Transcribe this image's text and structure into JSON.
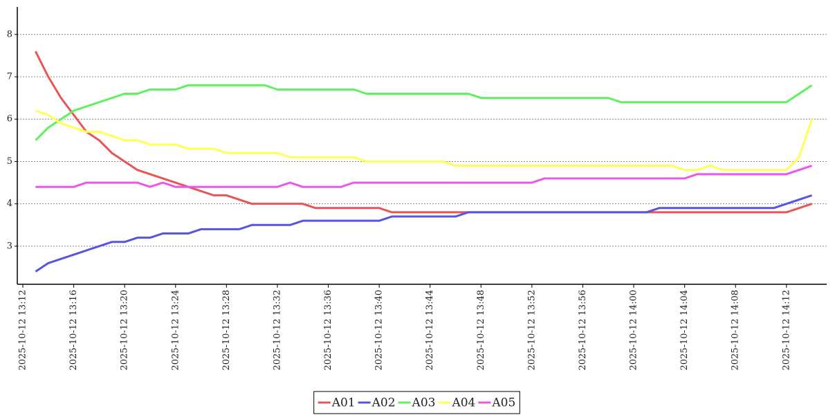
{
  "chart_data": {
    "type": "line",
    "x": [
      "2025-10-12 13:13",
      "2025-10-12 13:14",
      "2025-10-12 13:15",
      "2025-10-12 13:16",
      "2025-10-12 13:17",
      "2025-10-12 13:18",
      "2025-10-12 13:19",
      "2025-10-12 13:20",
      "2025-10-12 13:21",
      "2025-10-12 13:22",
      "2025-10-12 13:23",
      "2025-10-12 13:24",
      "2025-10-12 13:25",
      "2025-10-12 13:26",
      "2025-10-12 13:27",
      "2025-10-12 13:28",
      "2025-10-12 13:29",
      "2025-10-12 13:30",
      "2025-10-12 13:31",
      "2025-10-12 13:32",
      "2025-10-12 13:33",
      "2025-10-12 13:34",
      "2025-10-12 13:35",
      "2025-10-12 13:36",
      "2025-10-12 13:37",
      "2025-10-12 13:38",
      "2025-10-12 13:39",
      "2025-10-12 13:40",
      "2025-10-12 13:41",
      "2025-10-12 13:42",
      "2025-10-12 13:43",
      "2025-10-12 13:44",
      "2025-10-12 13:45",
      "2025-10-12 13:46",
      "2025-10-12 13:47",
      "2025-10-12 13:48",
      "2025-10-12 13:49",
      "2025-10-12 13:50",
      "2025-10-12 13:51",
      "2025-10-12 13:52",
      "2025-10-12 13:53",
      "2025-10-12 13:54",
      "2025-10-12 13:55",
      "2025-10-12 13:56",
      "2025-10-12 13:57",
      "2025-10-12 13:58",
      "2025-10-12 13:59",
      "2025-10-12 14:00",
      "2025-10-12 14:01",
      "2025-10-12 14:02",
      "2025-10-12 14:03",
      "2025-10-12 14:04",
      "2025-10-12 14:05",
      "2025-10-12 14:06",
      "2025-10-12 14:07",
      "2025-10-12 14:08",
      "2025-10-12 14:09",
      "2025-10-12 14:10",
      "2025-10-12 14:11",
      "2025-10-12 14:12",
      "2025-10-12 14:13",
      "2025-10-12 14:14"
    ],
    "series": [
      {
        "name": "A01",
        "color": "#e85555",
        "values": [
          7.6,
          7.0,
          6.5,
          6.1,
          5.7,
          5.5,
          5.2,
          5.0,
          4.8,
          4.7,
          4.6,
          4.5,
          4.4,
          4.3,
          4.2,
          4.2,
          4.1,
          4.0,
          4.0,
          4.0,
          4.0,
          4.0,
          3.9,
          3.9,
          3.9,
          3.9,
          3.9,
          3.9,
          3.8,
          3.8,
          3.8,
          3.8,
          3.8,
          3.8,
          3.8,
          3.8,
          3.8,
          3.8,
          3.8,
          3.8,
          3.8,
          3.8,
          3.8,
          3.8,
          3.8,
          3.8,
          3.8,
          3.8,
          3.8,
          3.8,
          3.8,
          3.8,
          3.8,
          3.8,
          3.8,
          3.8,
          3.8,
          3.8,
          3.8,
          3.8,
          3.9,
          4.0
        ]
      },
      {
        "name": "A02",
        "color": "#5555e0",
        "values": [
          2.4,
          2.6,
          2.7,
          2.8,
          2.9,
          3.0,
          3.1,
          3.1,
          3.2,
          3.2,
          3.3,
          3.3,
          3.3,
          3.4,
          3.4,
          3.4,
          3.4,
          3.5,
          3.5,
          3.5,
          3.5,
          3.6,
          3.6,
          3.6,
          3.6,
          3.6,
          3.6,
          3.6,
          3.7,
          3.7,
          3.7,
          3.7,
          3.7,
          3.7,
          3.8,
          3.8,
          3.8,
          3.8,
          3.8,
          3.8,
          3.8,
          3.8,
          3.8,
          3.8,
          3.8,
          3.8,
          3.8,
          3.8,
          3.8,
          3.9,
          3.9,
          3.9,
          3.9,
          3.9,
          3.9,
          3.9,
          3.9,
          3.9,
          3.9,
          4.0,
          4.1,
          4.2
        ]
      },
      {
        "name": "A03",
        "color": "#5ef05e",
        "values": [
          5.5,
          5.8,
          6.0,
          6.2,
          6.3,
          6.4,
          6.5,
          6.6,
          6.6,
          6.7,
          6.7,
          6.7,
          6.8,
          6.8,
          6.8,
          6.8,
          6.8,
          6.8,
          6.8,
          6.7,
          6.7,
          6.7,
          6.7,
          6.7,
          6.7,
          6.7,
          6.6,
          6.6,
          6.6,
          6.6,
          6.6,
          6.6,
          6.6,
          6.6,
          6.6,
          6.5,
          6.5,
          6.5,
          6.5,
          6.5,
          6.5,
          6.5,
          6.5,
          6.5,
          6.5,
          6.5,
          6.4,
          6.4,
          6.4,
          6.4,
          6.4,
          6.4,
          6.4,
          6.4,
          6.4,
          6.4,
          6.4,
          6.4,
          6.4,
          6.4,
          6.6,
          6.8
        ]
      },
      {
        "name": "A04",
        "color": "#ffff55",
        "values": [
          6.2,
          6.1,
          5.9,
          5.8,
          5.7,
          5.7,
          5.6,
          5.5,
          5.5,
          5.4,
          5.4,
          5.4,
          5.3,
          5.3,
          5.3,
          5.2,
          5.2,
          5.2,
          5.2,
          5.2,
          5.1,
          5.1,
          5.1,
          5.1,
          5.1,
          5.1,
          5.0,
          5.0,
          5.0,
          5.0,
          5.0,
          5.0,
          5.0,
          4.9,
          4.9,
          4.9,
          4.9,
          4.9,
          4.9,
          4.9,
          4.9,
          4.9,
          4.9,
          4.9,
          4.9,
          4.9,
          4.9,
          4.9,
          4.9,
          4.9,
          4.9,
          4.8,
          4.8,
          4.9,
          4.8,
          4.8,
          4.8,
          4.8,
          4.8,
          4.8,
          5.1,
          6.0
        ]
      },
      {
        "name": "A05",
        "color": "#ee55ee",
        "values": [
          4.4,
          4.4,
          4.4,
          4.4,
          4.5,
          4.5,
          4.5,
          4.5,
          4.5,
          4.4,
          4.5,
          4.4,
          4.4,
          4.4,
          4.4,
          4.4,
          4.4,
          4.4,
          4.4,
          4.4,
          4.5,
          4.4,
          4.4,
          4.4,
          4.4,
          4.5,
          4.5,
          4.5,
          4.5,
          4.5,
          4.5,
          4.5,
          4.5,
          4.5,
          4.5,
          4.5,
          4.5,
          4.5,
          4.5,
          4.5,
          4.6,
          4.6,
          4.6,
          4.6,
          4.6,
          4.6,
          4.6,
          4.6,
          4.6,
          4.6,
          4.6,
          4.6,
          4.7,
          4.7,
          4.7,
          4.7,
          4.7,
          4.7,
          4.7,
          4.7,
          4.8,
          4.9
        ]
      }
    ],
    "xlim": [
      "2025-10-12 13:12",
      "2025-10-12 14:15"
    ],
    "xticks": [
      "2025-10-12 13:12",
      "2025-10-12 13:16",
      "2025-10-12 13:20",
      "2025-10-12 13:24",
      "2025-10-12 13:28",
      "2025-10-12 13:32",
      "2025-10-12 13:36",
      "2025-10-12 13:40",
      "2025-10-12 13:44",
      "2025-10-12 13:48",
      "2025-10-12 13:52",
      "2025-10-12 13:56",
      "2025-10-12 14:00",
      "2025-10-12 14:04",
      "2025-10-12 14:08",
      "2025-10-12 14:12"
    ],
    "ylim": [
      2.1,
      8.65
    ],
    "yticks": [
      3,
      4,
      5,
      6,
      7,
      8
    ],
    "grid": true,
    "legend": "bottom"
  }
}
